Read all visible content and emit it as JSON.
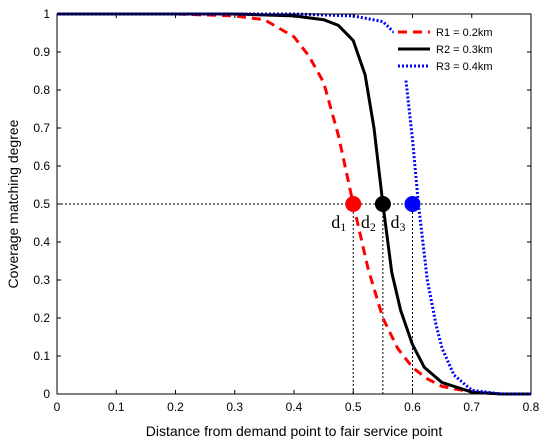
{
  "chart_data": {
    "type": "line",
    "xlabel": "Distance from demand point to fair service point",
    "ylabel": "Coverage matching degree",
    "xlim": [
      0,
      0.8
    ],
    "ylim": [
      0,
      1
    ],
    "xticks": [
      0,
      0.1,
      0.2,
      0.3,
      0.4,
      0.5,
      0.6,
      0.7,
      0.8
    ],
    "xtick_labels": [
      "0",
      "0.1",
      "0.2",
      "0.3",
      "0.4",
      "0.5",
      "0.6",
      "0.7",
      "0.8"
    ],
    "yticks": [
      0,
      0.1,
      0.2,
      0.3,
      0.4,
      0.5,
      0.6,
      0.7,
      0.8,
      0.9,
      1
    ],
    "ytick_labels": [
      "0",
      "0.1",
      "0.2",
      "0.3",
      "0.4",
      "0.5",
      "0.6",
      "0.7",
      "0.8",
      "0.9",
      "1"
    ],
    "grid": false,
    "legend_position": "top-right",
    "series": [
      {
        "name": "R1 = 0.2km",
        "color": "#ff0000",
        "style": "dashed",
        "x": [
          0,
          0.2,
          0.3,
          0.35,
          0.4,
          0.425,
          0.45,
          0.475,
          0.5,
          0.525,
          0.55,
          0.575,
          0.6,
          0.625,
          0.65,
          0.7,
          0.75,
          0.8
        ],
        "y": [
          1,
          1,
          0.995,
          0.985,
          0.94,
          0.89,
          0.82,
          0.68,
          0.5,
          0.33,
          0.2,
          0.12,
          0.07,
          0.04,
          0.02,
          0.005,
          0,
          0
        ]
      },
      {
        "name": "R2 = 0.3km",
        "color": "#000000",
        "style": "solid",
        "x": [
          0,
          0.3,
          0.4,
          0.45,
          0.475,
          0.5,
          0.52,
          0.535,
          0.55,
          0.565,
          0.58,
          0.6,
          0.62,
          0.65,
          0.7,
          0.75,
          0.8
        ],
        "y": [
          1,
          1,
          0.995,
          0.985,
          0.97,
          0.93,
          0.84,
          0.7,
          0.5,
          0.32,
          0.22,
          0.13,
          0.07,
          0.03,
          0.005,
          0,
          0
        ]
      },
      {
        "name": "R3 = 0.4km",
        "color": "#0000ff",
        "style": "dotted",
        "x": [
          0,
          0.4,
          0.5,
          0.55,
          0.57,
          0.585,
          0.6,
          0.61,
          0.625,
          0.64,
          0.65,
          0.67,
          0.7,
          0.75,
          0.8
        ],
        "y": [
          1,
          1,
          0.995,
          0.98,
          0.95,
          0.88,
          0.67,
          0.5,
          0.3,
          0.18,
          0.12,
          0.05,
          0.01,
          0,
          0
        ]
      }
    ],
    "reference_line": {
      "y": 0.5,
      "style": "dotted",
      "color": "#000000"
    },
    "markers": [
      {
        "label": "d1",
        "base": "d",
        "sub": "1",
        "x": 0.5,
        "y": 0.5,
        "color": "#ff0000"
      },
      {
        "label": "d2",
        "base": "d",
        "sub": "2",
        "x": 0.55,
        "y": 0.5,
        "color": "#000000"
      },
      {
        "label": "d3",
        "base": "d",
        "sub": "3",
        "x": 0.6,
        "y": 0.5,
        "color": "#0000ff"
      }
    ]
  }
}
